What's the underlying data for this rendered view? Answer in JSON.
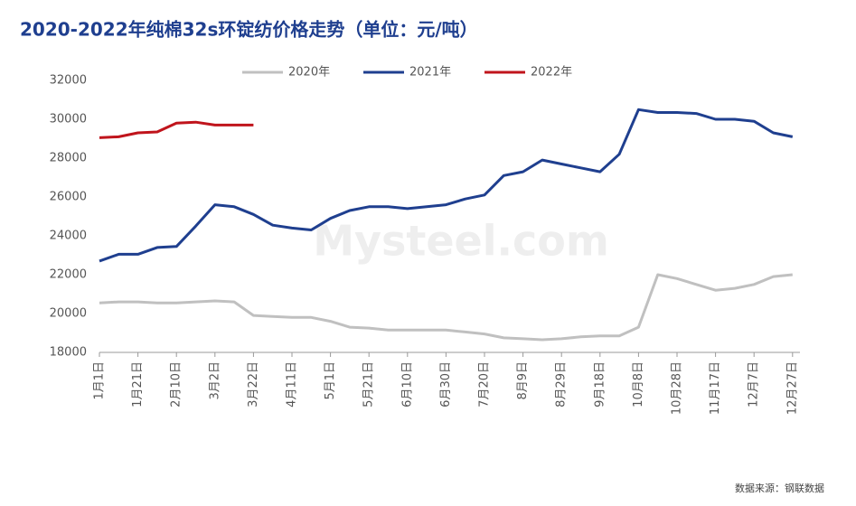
{
  "chart_data": {
    "type": "line",
    "title": "2020-2022年纯棉32s环锭纺价格走势（单位：元/吨）",
    "source": "数据来源：钢联数据",
    "watermark": "Mysteel.com",
    "categories": [
      "1月1日",
      null,
      "1月21日",
      null,
      "2月10日",
      null,
      "3月2日",
      null,
      "3月22日",
      null,
      "4月11日",
      null,
      "5月1日",
      null,
      "5月21日",
      null,
      "6月10日",
      null,
      "6月30日",
      null,
      "7月20日",
      null,
      "8月9日",
      null,
      "8月29日",
      null,
      "9月18日",
      null,
      "10月8日",
      null,
      "10月28日",
      null,
      "11月17日",
      null,
      "12月7日",
      null,
      "12月27日"
    ],
    "series": [
      {
        "name": "2020年",
        "color": "#c0c0c0",
        "values": [
          20550,
          20600,
          20600,
          20550,
          20550,
          20600,
          20650,
          20600,
          19900,
          19850,
          19800,
          19800,
          19600,
          19300,
          19250,
          19150,
          19150,
          19150,
          19150,
          19050,
          18950,
          18750,
          18700,
          18650,
          18700,
          18800,
          18850,
          18850,
          19300,
          22000,
          21800,
          21500,
          21200,
          21300,
          21500,
          21900,
          22000
        ]
      },
      {
        "name": "2021年",
        "color": "#1f3f8f",
        "values": [
          22700,
          23050,
          23050,
          23400,
          23450,
          24500,
          25600,
          25500,
          25100,
          24550,
          24400,
          24300,
          24900,
          25300,
          25500,
          25500,
          25400,
          25500,
          25600,
          25900,
          26100,
          27100,
          27300,
          27900,
          27700,
          27500,
          27300,
          28200,
          30500,
          30350,
          30350,
          30300,
          30000,
          30000,
          29900,
          29300,
          29100
        ]
      },
      {
        "name": "2022年",
        "color": "#c0141c",
        "values": [
          29050,
          29100,
          29300,
          29350,
          29800,
          29850,
          29700,
          29700,
          29700,
          null,
          null,
          null,
          null,
          null,
          null,
          null,
          null,
          null,
          null,
          null,
          null,
          null,
          null,
          null,
          null,
          null,
          null,
          null,
          null,
          null,
          null,
          null,
          null,
          null,
          null,
          null,
          null
        ]
      }
    ],
    "ylim": [
      18000,
      32000
    ],
    "yticks": [
      18000,
      20000,
      22000,
      24000,
      26000,
      28000,
      30000,
      32000
    ],
    "grid": false
  }
}
